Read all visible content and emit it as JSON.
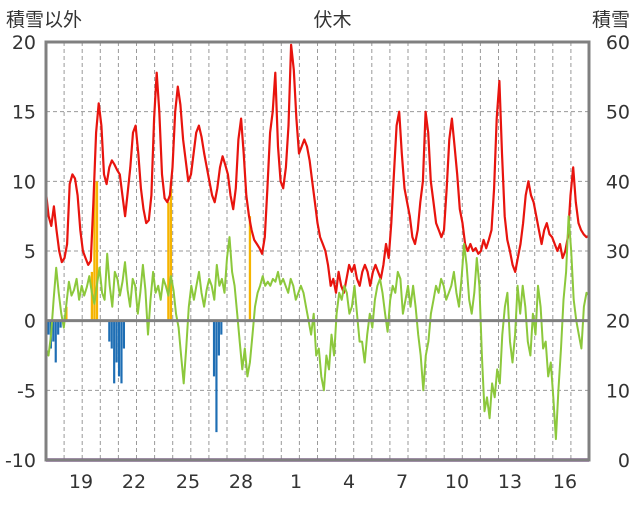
{
  "chart_data": {
    "type": "bar",
    "title": "伏木",
    "left_axis_label": "積雪以外",
    "right_axis_label": "積雪",
    "left_ylim": [
      -10,
      20
    ],
    "left_yticks": [
      -10,
      -5,
      0,
      5,
      10,
      15,
      20
    ],
    "right_ylim": [
      0,
      60
    ],
    "right_yticks": [
      0,
      10,
      20,
      30,
      40,
      50,
      60
    ],
    "x_tick_labels": [
      "19",
      "22",
      "25",
      "28",
      "1",
      "4",
      "7",
      "10",
      "13",
      "16"
    ],
    "grid": "dashed",
    "colors": {
      "red_line": "#e8140e",
      "green_line": "#8cc83c",
      "orange_bar": "#f5b400",
      "blue_bar": "#1e6eb4",
      "purple_line": "#7a3c96",
      "axis": "#808080"
    },
    "series": [
      {
        "type": "line",
        "color": "#e8140e",
        "values": [
          9.2,
          7.5,
          6.8,
          8.2,
          6.5,
          5.0,
          4.2,
          4.5,
          5.5,
          9.8,
          10.5,
          10.2,
          9.0,
          6.5,
          5.0,
          4.5,
          4.0,
          4.3,
          8.5,
          13.5,
          15.6,
          14.0,
          10.5,
          9.8,
          11.0,
          11.5,
          11.2,
          10.8,
          10.5,
          9.0,
          7.5,
          9.2,
          11.0,
          13.5,
          14.0,
          12.0,
          9.5,
          8.0,
          7.0,
          7.2,
          9.0,
          14.5,
          17.8,
          15.0,
          10.5,
          8.8,
          8.5,
          9.0,
          11.0,
          15.0,
          16.8,
          15.5,
          13.0,
          11.5,
          10.0,
          10.5,
          12.0,
          13.5,
          14.0,
          13.2,
          12.0,
          11.0,
          10.0,
          9.0,
          8.5,
          9.5,
          11.0,
          11.8,
          11.2,
          10.5,
          9.0,
          8.0,
          9.5,
          13.0,
          14.5,
          12.0,
          9.0,
          7.5,
          6.5,
          5.8,
          5.5,
          5.2,
          4.8,
          6.0,
          9.5,
          13.5,
          15.0,
          17.8,
          12.5,
          10.0,
          9.5,
          11.0,
          14.0,
          19.8,
          18.0,
          14.5,
          12.0,
          12.5,
          13.0,
          12.5,
          11.5,
          10.0,
          8.5,
          7.0,
          6.0,
          5.5,
          5.0,
          4.0,
          2.5,
          3.0,
          2.0,
          3.5,
          2.5,
          2.0,
          3.0,
          4.0,
          3.5,
          4.0,
          3.0,
          2.5,
          3.5,
          4.0,
          3.5,
          2.5,
          3.5,
          4.0,
          3.5,
          3.0,
          4.0,
          5.5,
          4.5,
          7.0,
          10.5,
          14.0,
          15.0,
          12.0,
          9.5,
          8.5,
          7.5,
          6.0,
          5.5,
          6.5,
          8.5,
          10.0,
          15.0,
          13.5,
          10.0,
          8.5,
          7.0,
          6.5,
          6.0,
          6.5,
          9.5,
          13.0,
          14.5,
          12.5,
          10.5,
          8.0,
          7.0,
          5.5,
          5.0,
          5.5,
          5.0,
          5.2,
          4.8,
          5.0,
          5.8,
          5.2,
          5.8,
          6.5,
          9.5,
          14.5,
          17.2,
          12.0,
          7.5,
          5.8,
          5.0,
          4.0,
          3.5,
          4.5,
          5.5,
          7.0,
          9.0,
          10.0,
          9.0,
          8.5,
          7.5,
          6.5,
          5.5,
          6.5,
          7.0,
          6.2,
          6.0,
          5.5,
          5.0,
          5.5,
          4.5,
          5.0,
          6.0,
          9.0,
          11.0,
          8.5,
          7.0,
          6.5,
          6.2,
          6.0,
          6.1
        ]
      },
      {
        "type": "line",
        "color": "#8cc83c",
        "values": [
          -2.0,
          -2.5,
          -1.0,
          1.5,
          3.8,
          2.0,
          0.5,
          -0.5,
          1.2,
          2.8,
          1.8,
          2.2,
          3.0,
          1.5,
          2.5,
          1.8,
          2.4,
          3.2,
          2.0,
          1.2,
          2.6,
          3.8,
          2.0,
          1.5,
          4.8,
          2.5,
          1.0,
          3.5,
          3.0,
          1.8,
          2.8,
          4.2,
          2.2,
          1.0,
          3.0,
          2.5,
          0.5,
          2.0,
          4.0,
          2.2,
          -1.0,
          1.5,
          3.5,
          2.0,
          2.5,
          1.5,
          3.0,
          2.5,
          1.8,
          3.2,
          2.2,
          0.5,
          -0.5,
          -2.5,
          -4.5,
          -2.0,
          1.0,
          2.5,
          1.5,
          2.5,
          3.5,
          2.0,
          1.0,
          2.2,
          3.0,
          2.5,
          1.5,
          4.0,
          2.5,
          3.0,
          2.0,
          4.5,
          6.0,
          3.5,
          2.5,
          0.5,
          -1.5,
          -3.5,
          -2.0,
          -4.0,
          -3.0,
          -1.0,
          1.0,
          2.0,
          2.5,
          3.2,
          2.5,
          2.8,
          2.5,
          3.0,
          2.8,
          3.5,
          2.6,
          3.0,
          2.5,
          2.0,
          3.0,
          2.5,
          1.5,
          2.0,
          2.5,
          2.0,
          1.0,
          0.0,
          -1.0,
          0.5,
          -2.5,
          -2.0,
          -4.0,
          -5.0,
          -2.5,
          -3.5,
          -1.0,
          -2.5,
          0.5,
          2.0,
          1.5,
          2.5,
          2.0,
          0.5,
          1.0,
          2.5,
          0.5,
          -1.5,
          -1.5,
          -3.0,
          -1.0,
          0.5,
          -0.5,
          1.5,
          2.5,
          3.0,
          2.0,
          0.5,
          -0.8,
          1.5,
          2.5,
          2.0,
          3.5,
          3.0,
          0.5,
          1.5,
          2.5,
          1.0,
          2.5,
          1.0,
          -1.0,
          -2.5,
          -5.0,
          -2.5,
          -1.5,
          0.5,
          1.5,
          2.5,
          2.0,
          3.0,
          2.5,
          1.5,
          2.0,
          2.5,
          3.5,
          2.0,
          1.0,
          3.0,
          5.5,
          4.0,
          1.5,
          0.5,
          2.0,
          4.5,
          2.5,
          -2.5,
          -6.5,
          -5.5,
          -7.0,
          -4.5,
          -5.5,
          -3.5,
          -4.5,
          -1.0,
          1.0,
          2.0,
          -1.5,
          -3.0,
          -1.0,
          2.5,
          0.5,
          2.5,
          1.0,
          -1.5,
          -2.5,
          0.5,
          -1.0,
          2.5,
          1.0,
          -2.0,
          -1.5,
          -4.0,
          -3.0,
          -5.5,
          -8.5,
          -5.0,
          -2.0,
          1.5,
          3.5,
          7.5,
          5.0,
          1.5,
          0.0,
          -1.0,
          -2.0,
          1.0,
          2.0,
          1.8
        ]
      },
      {
        "type": "bar",
        "color": "#f5b400",
        "values": [
          2.5,
          0,
          0,
          0,
          0,
          0,
          0,
          0,
          1.0,
          0,
          0,
          0,
          0,
          0,
          0,
          0,
          0,
          0,
          3.5,
          10.0,
          10.0,
          0,
          0,
          0,
          0,
          0,
          0,
          0,
          0,
          0,
          0,
          0,
          0,
          0,
          0,
          0,
          0,
          0,
          0,
          0,
          0,
          0,
          0,
          0,
          0,
          0,
          0,
          0,
          8.5,
          10.0,
          0,
          0,
          0,
          0,
          0,
          0,
          0,
          0,
          0,
          0,
          0,
          0,
          0,
          0,
          0,
          0,
          0,
          0,
          0,
          0,
          0,
          0,
          0,
          0,
          0,
          0,
          0,
          0,
          0,
          0,
          7.5,
          0,
          0,
          0,
          0,
          0,
          0,
          0,
          0,
          0,
          0,
          0,
          0,
          0,
          0,
          0,
          0,
          0,
          0,
          0,
          0,
          0,
          0,
          0,
          0,
          0,
          0,
          0,
          0,
          0,
          0,
          0,
          0,
          0,
          0,
          0,
          0,
          0,
          0,
          0,
          0,
          0,
          0,
          0,
          0,
          0,
          0,
          0,
          0,
          0,
          0,
          0,
          0,
          0,
          0,
          0,
          0,
          0,
          0,
          0,
          0,
          0,
          0,
          0,
          0,
          0,
          0,
          0,
          0,
          0,
          0,
          0,
          0,
          0,
          0,
          0,
          0,
          0,
          0,
          0,
          0,
          0,
          0,
          0,
          0,
          0,
          0,
          0,
          0,
          0,
          0,
          0,
          0,
          0,
          0,
          0,
          0,
          0,
          0,
          0,
          0,
          0,
          0,
          0,
          0,
          0,
          0,
          0,
          0,
          0,
          0,
          0,
          0,
          0,
          0,
          0,
          0,
          0,
          0,
          0,
          0,
          0,
          0,
          0,
          0,
          0,
          0,
          0,
          0,
          0,
          0,
          0,
          0,
          0
        ]
      },
      {
        "type": "bar",
        "color": "#1e6eb4",
        "values": [
          0,
          -1.0,
          -2.0,
          -1.5,
          -3.0,
          -1.0,
          -0.5,
          0,
          0,
          0,
          0,
          0,
          0,
          0,
          0,
          0,
          0,
          0,
          0,
          0,
          0,
          0,
          0,
          0,
          0,
          0,
          -1.5,
          -2.0,
          -4.5,
          -3.0,
          -4.0,
          -4.5,
          -2.0,
          0,
          0,
          0,
          0,
          0,
          0,
          0,
          0,
          0,
          0,
          0,
          0,
          0,
          0,
          0,
          0,
          0,
          0,
          0,
          0,
          0,
          0,
          0,
          0,
          0,
          0,
          0,
          0,
          0,
          0,
          0,
          0,
          0,
          0,
          0,
          0,
          -4.0,
          -8.0,
          -2.5,
          -1.0,
          0,
          0,
          0,
          0,
          0,
          0,
          0,
          0,
          0,
          0,
          0,
          0,
          0,
          0,
          0,
          0,
          0,
          0,
          0,
          0,
          0,
          0,
          0,
          0,
          0,
          0,
          0,
          0,
          0,
          0,
          0,
          0,
          0,
          0,
          0,
          0,
          0,
          0,
          0,
          0,
          0,
          0,
          0,
          0,
          0,
          0,
          0,
          0,
          0,
          0,
          0,
          0,
          0,
          0,
          0,
          0,
          0,
          0,
          0,
          0,
          0,
          0,
          0,
          0,
          0,
          0,
          0,
          0,
          0,
          0,
          0,
          0,
          0,
          0,
          0,
          0,
          0,
          0,
          0,
          0,
          0,
          0,
          0,
          0,
          0,
          0,
          0,
          0,
          0,
          0,
          0,
          0,
          0,
          0,
          0,
          0,
          0,
          0,
          0,
          0,
          0,
          0,
          0,
          0,
          0,
          0,
          0,
          0,
          0,
          0,
          0,
          0,
          0,
          0,
          0,
          0,
          0,
          0,
          0,
          0,
          0,
          0,
          0,
          0,
          0,
          0,
          0,
          0,
          0,
          0,
          0,
          0,
          0,
          0,
          0,
          0,
          0,
          0,
          0,
          0,
          0,
          0,
          0,
          0,
          0,
          0,
          0,
          0,
          0,
          0,
          0
        ]
      },
      {
        "type": "line",
        "color": "#7a3c96",
        "values": [
          -10,
          -10
        ]
      }
    ]
  }
}
